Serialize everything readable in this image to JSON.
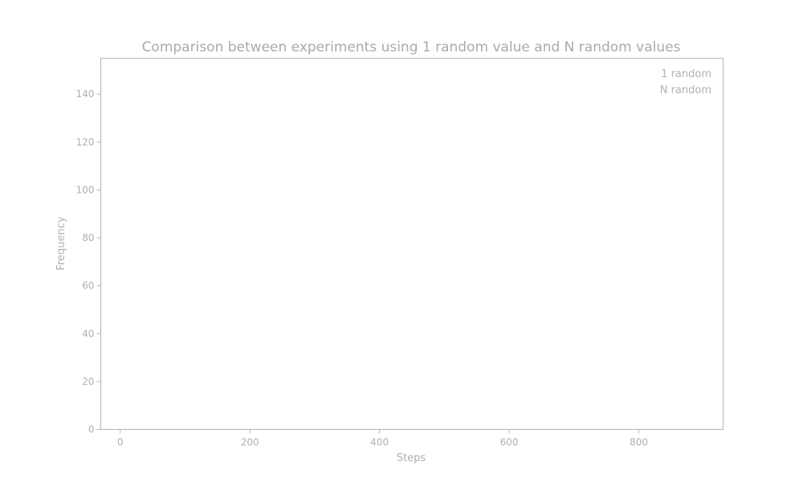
{
  "chart_data": {
    "type": "bar",
    "title": "Comparison between experiments using 1 random value and N random values",
    "xlabel": "Steps",
    "ylabel": "Frequency",
    "xlim": [
      -30,
      930
    ],
    "ylim": [
      0,
      155
    ],
    "xticks": [
      0,
      200,
      400,
      600,
      800
    ],
    "yticks": [
      0,
      20,
      40,
      60,
      80,
      100,
      120,
      140
    ],
    "grid": false,
    "legend_position": "top-right",
    "series": [
      {
        "name": "1 random",
        "values": []
      },
      {
        "name": "N random",
        "values": []
      }
    ]
  }
}
